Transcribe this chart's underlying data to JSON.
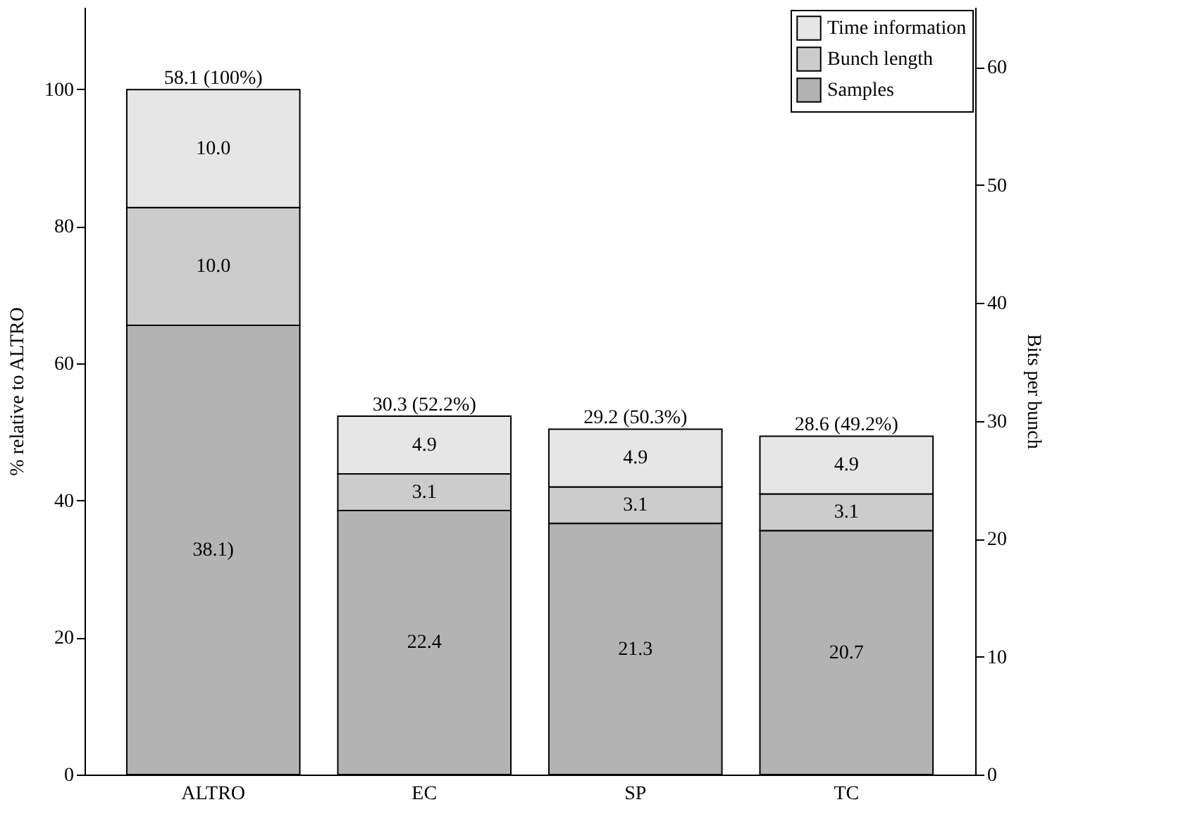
{
  "chart_data": {
    "type": "bar",
    "stacked": true,
    "ylabel": "% relative to ALTRO",
    "y2label": "Bits per bunch",
    "categories": [
      "ALTRO",
      "EC",
      "SP",
      "TC"
    ],
    "ylim": [
      0,
      112
    ],
    "yticks": [
      0,
      20,
      40,
      60,
      80,
      100
    ],
    "y2lim": [
      0,
      65.1
    ],
    "y2ticks": [
      0,
      10,
      20,
      30,
      40,
      50,
      60
    ],
    "series": [
      {
        "name": "Samples",
        "color": "#b3b3b3",
        "axis": "y2",
        "values": [
          38.1,
          22.4,
          21.3,
          20.7
        ],
        "value_labels": [
          "38.1)",
          "22.4",
          "21.3",
          "20.7"
        ]
      },
      {
        "name": "Bunch length",
        "color": "#cccccc",
        "axis": "y2",
        "values": [
          10.0,
          3.1,
          3.1,
          3.1
        ],
        "value_labels": [
          "10.0",
          "3.1",
          "3.1",
          "3.1"
        ]
      },
      {
        "name": "Time information",
        "color": "#e6e6e6",
        "axis": "y2",
        "values": [
          10.0,
          4.9,
          4.9,
          4.9
        ],
        "value_labels": [
          "10.0",
          "4.9",
          "4.9",
          "4.9"
        ]
      }
    ],
    "totals": [
      "58.1 (100%)",
      "30.3 (52.2%)",
      "29.2 (50.3%)",
      "28.6 (49.2%)"
    ],
    "legend": "top right",
    "grid": false
  }
}
